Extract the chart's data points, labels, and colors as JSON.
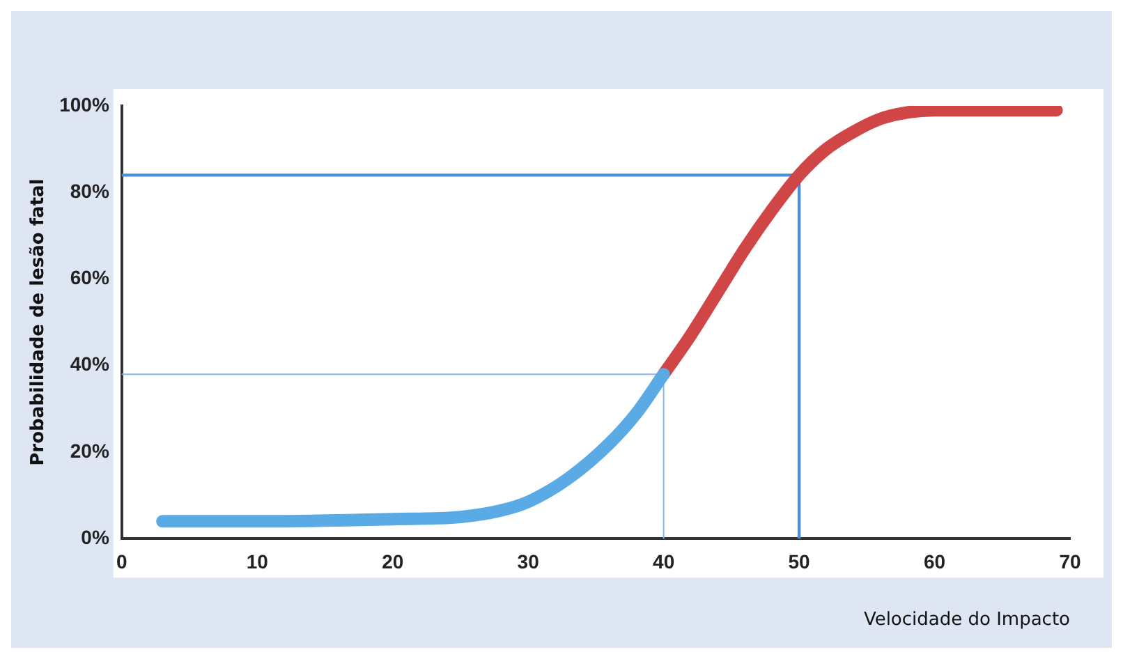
{
  "chart_data": {
    "type": "line",
    "xlabel": "Velocidade do Impacto",
    "ylabel": "Probabilidade de lesão fatal",
    "xlim": [
      0,
      70
    ],
    "xticks": [
      0,
      10,
      20,
      30,
      40,
      50,
      60,
      70
    ],
    "ylim": [
      0,
      100
    ],
    "yticks": [
      {
        "value": 0,
        "label": "0%"
      },
      {
        "value": 20,
        "label": "20%"
      },
      {
        "value": 40,
        "label": "40%"
      },
      {
        "value": 60,
        "label": "60%"
      },
      {
        "value": 80,
        "label": "80%"
      },
      {
        "value": 100,
        "label": "100%"
      }
    ],
    "series": [
      {
        "color": "#5aaae6",
        "x": [
          3,
          10,
          20,
          25,
          28,
          30,
          33,
          36,
          38,
          40
        ],
        "values": [
          4,
          4,
          4.5,
          5,
          6.5,
          8.5,
          14,
          22,
          29,
          38
        ]
      },
      {
        "color": "#d04545",
        "x": [
          40,
          42,
          44,
          46,
          48,
          50,
          52,
          54,
          56,
          58,
          60,
          65,
          69
        ],
        "values": [
          38,
          47,
          57,
          67,
          76,
          84,
          90,
          94,
          97,
          98.5,
          99,
          99,
          99
        ]
      }
    ],
    "ref_lines": [
      {
        "axis": "y",
        "value": 84,
        "color": "#4a90d9"
      },
      {
        "axis": "x",
        "value": 50,
        "color": "#4a90d9"
      },
      {
        "axis": "y",
        "value": 38,
        "color": "#8ab8e6"
      },
      {
        "axis": "x",
        "value": 40,
        "color": "#8ab8e6"
      }
    ],
    "grid": false,
    "legend": false,
    "marker": "none",
    "line_style": "solid"
  }
}
